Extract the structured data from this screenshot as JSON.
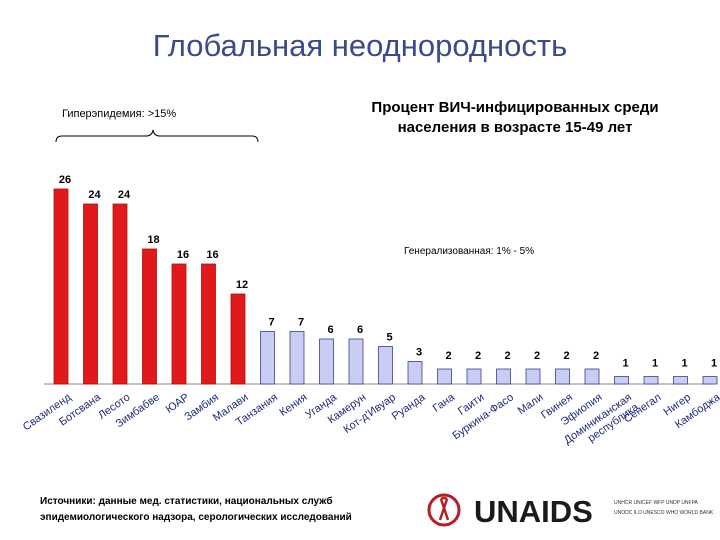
{
  "page_title": "Глобальная неоднородность",
  "annotations": {
    "hyper": "Гиперэпидемия: >15%",
    "generalized": "Генерализованная: 1% - 5%"
  },
  "sources": [
    "Источники: данные мед. статистики, национальных служб",
    "эпидемиологического надзора, серологических исследований"
  ],
  "logo": {
    "name": "UNAIDS",
    "lines": [
      "UNHCR UNICEF WFP UNDP UNFPA",
      "UNODC ILO UNESCO WHO WORLD BANK"
    ]
  },
  "colors": {
    "hyper": "#e0191b",
    "generalized": "#c9cdf4",
    "title": "#3a4a8c"
  },
  "chart_data": {
    "type": "bar",
    "title_lines": [
      "Процент ВИЧ-инфицированных среди",
      "населения в возрасте 15-49 лет"
    ],
    "categories": [
      "Свазиленд",
      "Ботсвана",
      "Лесото",
      "Зимбабве",
      "ЮАР",
      "Замбия",
      "Малави",
      "Танзания",
      "Кения",
      "Уганда",
      "Камерун",
      "Кот-д'Ивуар",
      "Руанда",
      "Гана",
      "Гаити",
      "Буркина-Фасо",
      "Мали",
      "Гвинея",
      "Эфиопия",
      "Доминиканская республика",
      "Сенегал",
      "Нигер",
      "Камбоджа"
    ],
    "label_lines": [
      [
        "Свазиленд"
      ],
      [
        "Ботсвана"
      ],
      [
        "Лесото"
      ],
      [
        "Зимбабве"
      ],
      [
        "ЮАР"
      ],
      [
        "Замбия"
      ],
      [
        "Малави"
      ],
      [
        "Танзания"
      ],
      [
        "Кения"
      ],
      [
        "Уганда"
      ],
      [
        "Камерун"
      ],
      [
        "Кот-д'Ивуар"
      ],
      [
        "Руанда"
      ],
      [
        "Гана"
      ],
      [
        "Гаити"
      ],
      [
        "Буркина-Фасо"
      ],
      [
        "Мали"
      ],
      [
        "Гвинея"
      ],
      [
        "Эфиопия"
      ],
      [
        "Доминиканская",
        "республика"
      ],
      [
        "Сенегал"
      ],
      [
        "Нигер"
      ],
      [
        "Камбоджа"
      ]
    ],
    "values": [
      26,
      24,
      24,
      18,
      16,
      16,
      12,
      7,
      7,
      6,
      6,
      5,
      3,
      2,
      2,
      2,
      2,
      2,
      2,
      1,
      1,
      1,
      1
    ],
    "groups": [
      "hyper",
      "hyper",
      "hyper",
      "hyper",
      "hyper",
      "hyper",
      "hyper",
      "generalized",
      "generalized",
      "generalized",
      "generalized",
      "generalized",
      "generalized",
      "generalized",
      "generalized",
      "generalized",
      "generalized",
      "generalized",
      "generalized",
      "generalized",
      "generalized",
      "generalized",
      "generalized"
    ],
    "ylim": [
      0,
      26
    ],
    "grid": false
  }
}
